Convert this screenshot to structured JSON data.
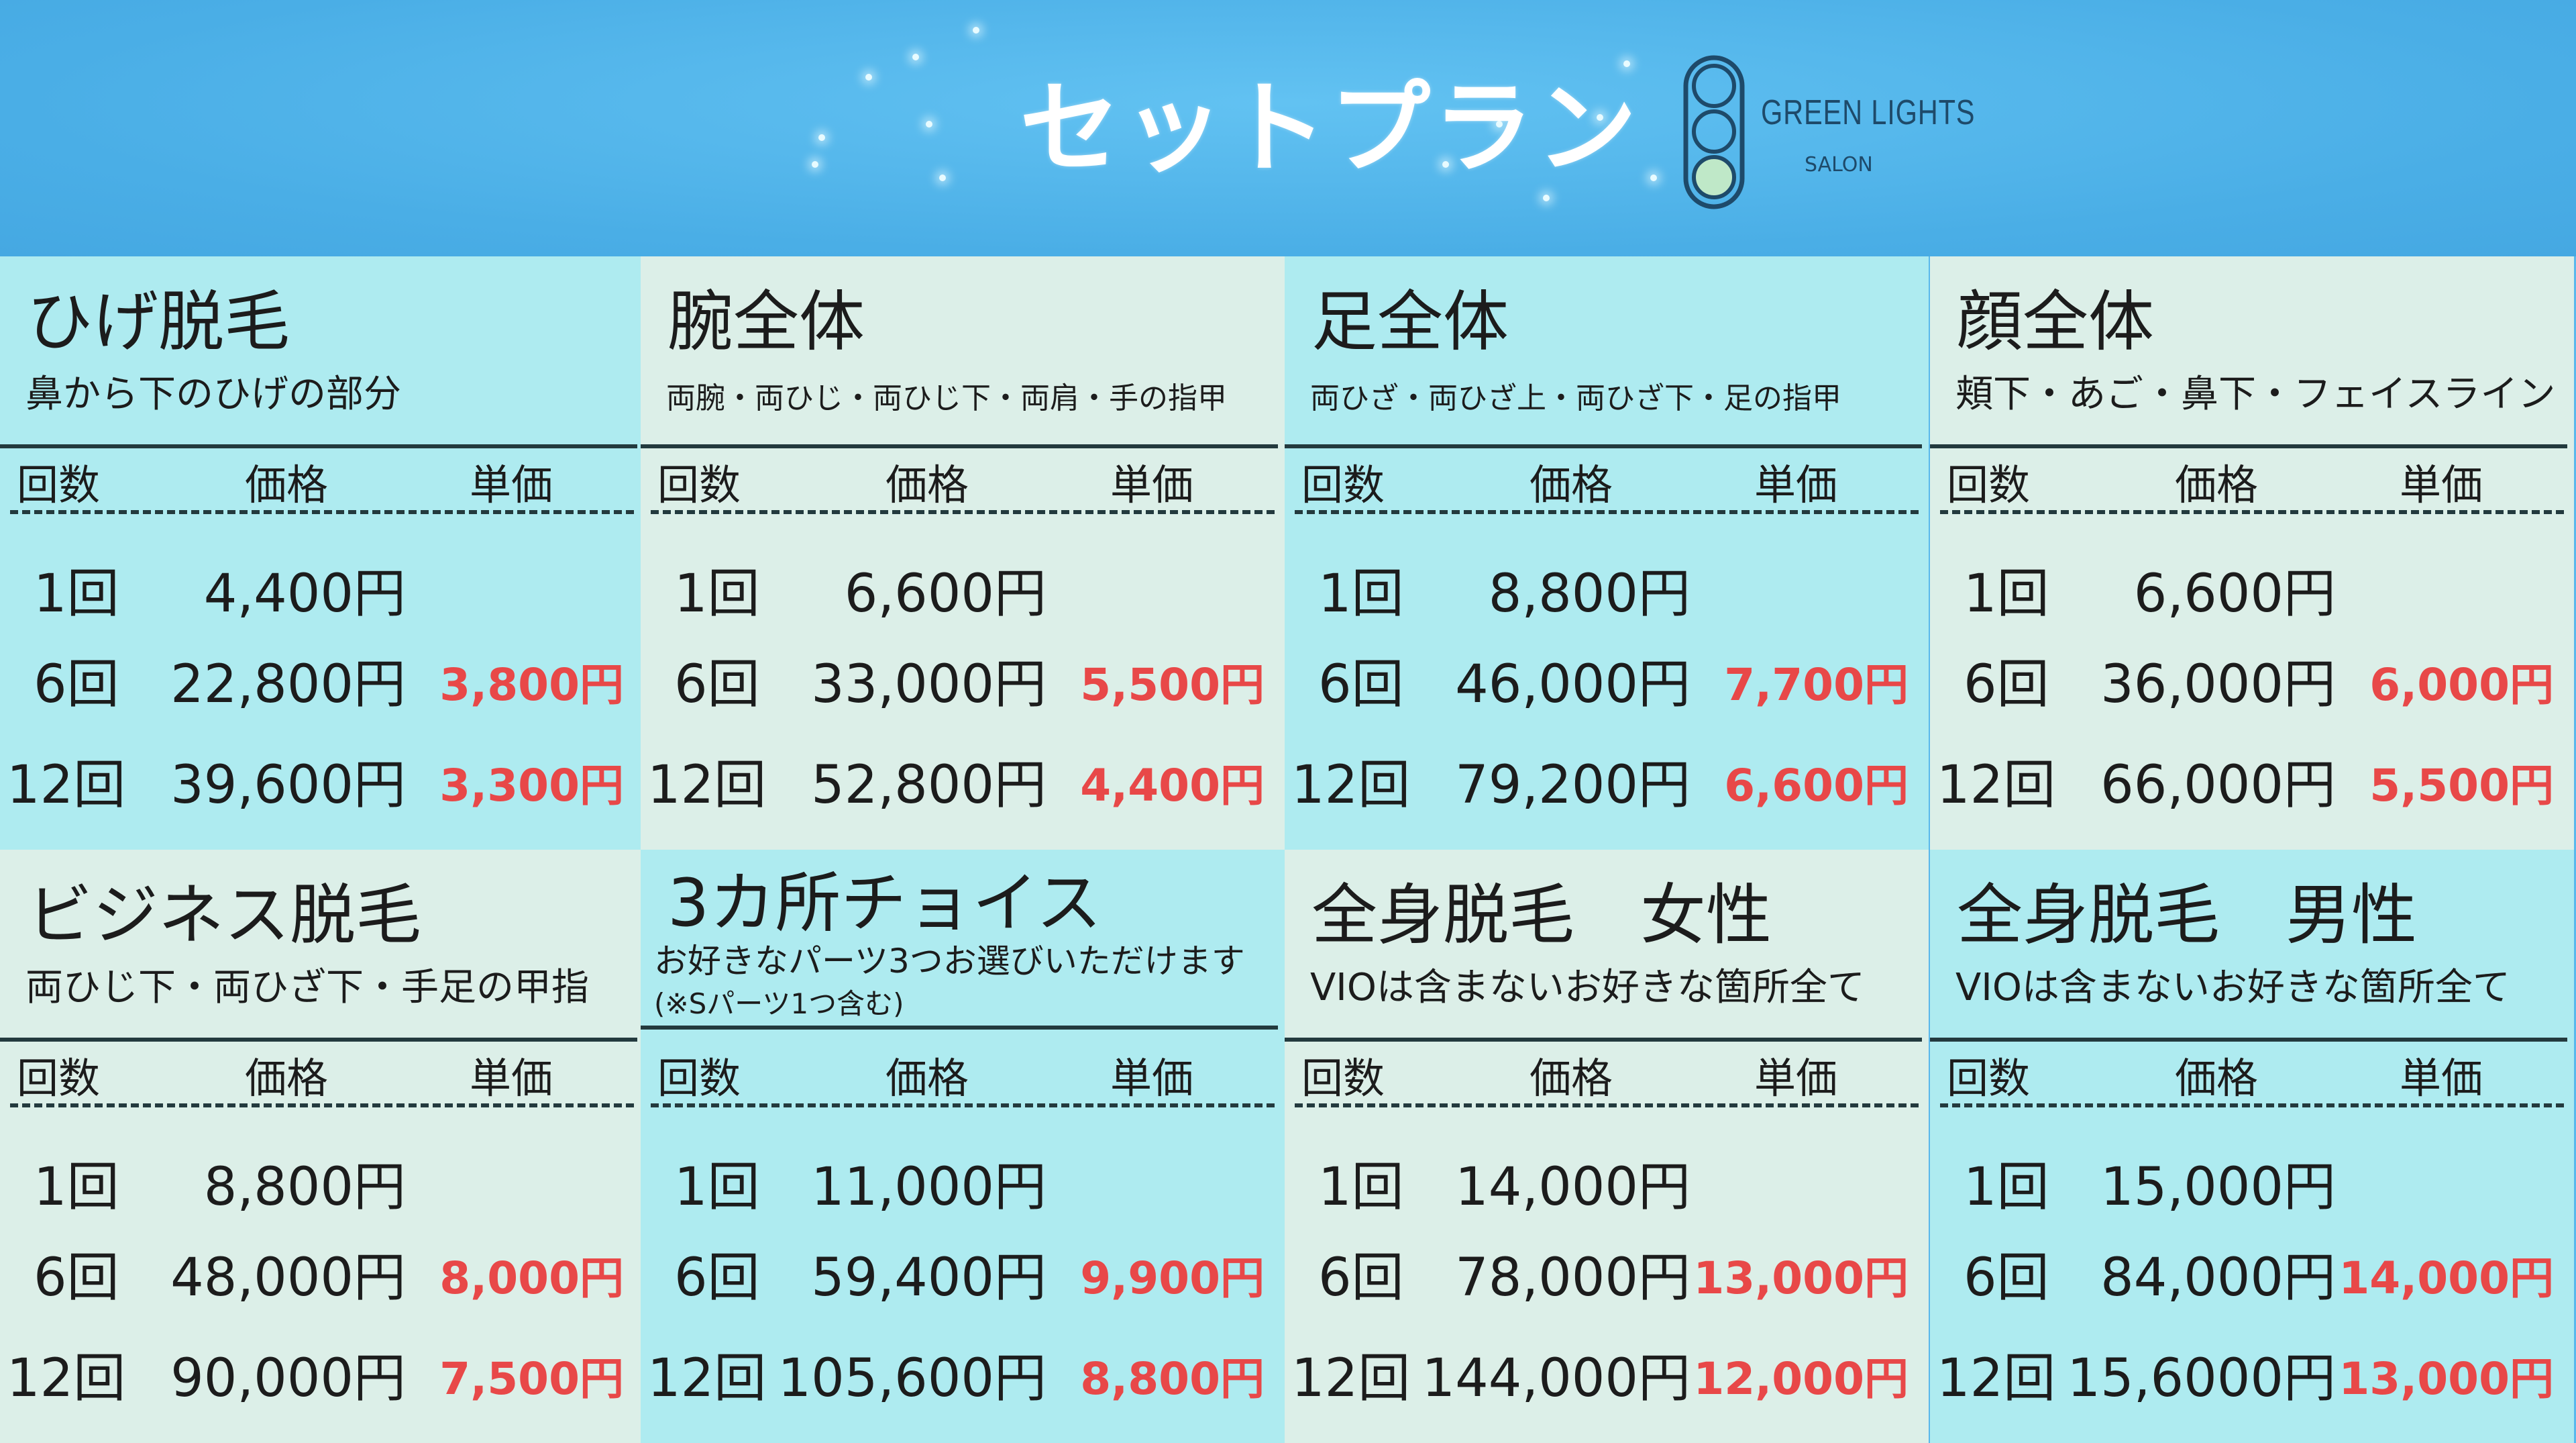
{
  "header": {
    "title": "セットプラン",
    "logo": {
      "name": "GREEN LIGHTS",
      "sub": "SALON"
    }
  },
  "colors": {
    "cyan": "#aeebf0",
    "light": "#dcefe8",
    "accent_red": "#e84848",
    "header_blue": "#4aaee6"
  },
  "column_headers": {
    "count": "回数",
    "price": "価格",
    "unit": "単価"
  },
  "plans": [
    {
      "title": "ひげ脱毛",
      "subtitle": "鼻から下のひげの部分",
      "rows": [
        {
          "count": "1回",
          "price": "4,400円",
          "unit": ""
        },
        {
          "count": "6回",
          "price": "22,800円",
          "unit": "3,800円"
        },
        {
          "count": "12回",
          "price": "39,600円",
          "unit": "3,300円"
        }
      ]
    },
    {
      "title": "腕全体",
      "subtitle": "両腕・両ひじ・両ひじ下・両肩・手の指甲",
      "rows": [
        {
          "count": "1回",
          "price": "6,600円",
          "unit": ""
        },
        {
          "count": "6回",
          "price": "33,000円",
          "unit": "5,500円"
        },
        {
          "count": "12回",
          "price": "52,800円",
          "unit": "4,400円"
        }
      ]
    },
    {
      "title": "足全体",
      "subtitle": "両ひざ・両ひざ上・両ひざ下・足の指甲",
      "rows": [
        {
          "count": "1回",
          "price": "8,800円",
          "unit": ""
        },
        {
          "count": "6回",
          "price": "46,000円",
          "unit": "7,700円"
        },
        {
          "count": "12回",
          "price": "79,200円",
          "unit": "6,600円"
        }
      ]
    },
    {
      "title": "顔全体",
      "subtitle": "頬下・あご・鼻下・フェイスライン",
      "rows": [
        {
          "count": "1回",
          "price": "6,600円",
          "unit": ""
        },
        {
          "count": "6回",
          "price": "36,000円",
          "unit": "6,000円"
        },
        {
          "count": "12回",
          "price": "66,000円",
          "unit": "5,500円"
        }
      ]
    },
    {
      "title": "ビジネス脱毛",
      "subtitle": "両ひじ下・両ひざ下・手足の甲指",
      "rows": [
        {
          "count": "1回",
          "price": "8,800円",
          "unit": ""
        },
        {
          "count": "6回",
          "price": "48,000円",
          "unit": "8,000円"
        },
        {
          "count": "12回",
          "price": "90,000円",
          "unit": "7,500円"
        }
      ]
    },
    {
      "title": "3カ所チョイス",
      "subtitle": "お好きなパーツ3つお選びいただけます",
      "subtitle2": "(※Sパーツ1つ含む)",
      "rows": [
        {
          "count": "1回",
          "price": "11,000円",
          "unit": ""
        },
        {
          "count": "6回",
          "price": "59,400円",
          "unit": "9,900円"
        },
        {
          "count": "12回",
          "price": "105,600円",
          "unit": "8,800円"
        }
      ]
    },
    {
      "title": "全身脱毛　女性",
      "subtitle": "VIOは含まないお好きな箇所全て",
      "rows": [
        {
          "count": "1回",
          "price": "14,000円",
          "unit": ""
        },
        {
          "count": "6回",
          "price": "78,000円",
          "unit": "13,000円"
        },
        {
          "count": "12回",
          "price": "144,000円",
          "unit": "12,000円"
        }
      ]
    },
    {
      "title": "全身脱毛　男性",
      "subtitle": "VIOは含まないお好きな箇所全て",
      "rows": [
        {
          "count": "1回",
          "price": "15,000円",
          "unit": ""
        },
        {
          "count": "6回",
          "price": "84,000円",
          "unit": "14,000円"
        },
        {
          "count": "12回",
          "price": "15,6000円",
          "unit": "13,000円"
        }
      ]
    }
  ]
}
